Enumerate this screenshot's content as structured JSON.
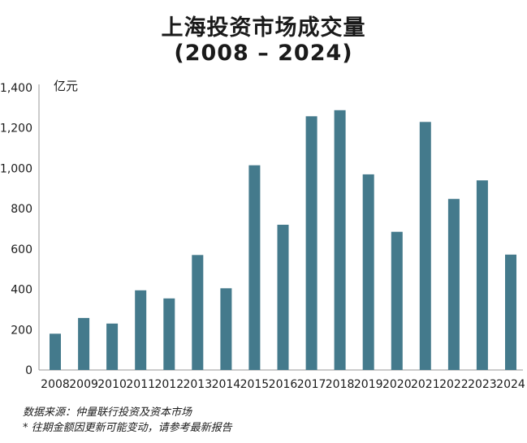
{
  "chart_data": {
    "type": "bar",
    "title": "上海投资市场成交量",
    "subtitle": "(2008 – 2024)",
    "ylabel": "亿元",
    "xlabel": "",
    "ylim": [
      0,
      1400
    ],
    "yticks": [
      "0",
      "200",
      "400",
      "600",
      "800",
      "1,000",
      "1,200",
      "1,400"
    ],
    "ytick_values": [
      0,
      200,
      400,
      600,
      800,
      1000,
      1200,
      1400
    ],
    "categories": [
      "2008",
      "2009",
      "2010",
      "2011",
      "2012",
      "2013",
      "2014",
      "2015",
      "2016",
      "2017",
      "2018",
      "2019",
      "2020",
      "2021",
      "2022",
      "2023",
      "2024"
    ],
    "values": [
      180,
      258,
      230,
      395,
      355,
      570,
      405,
      1015,
      720,
      1258,
      1288,
      970,
      685,
      1230,
      848,
      940,
      572
    ],
    "bar_color": "#447a8c",
    "grid": false
  },
  "footer": {
    "source": "数据来源：仲量联行投资及资本市场",
    "note": "* 往期金额因更新可能变动，请参考最新报告"
  }
}
